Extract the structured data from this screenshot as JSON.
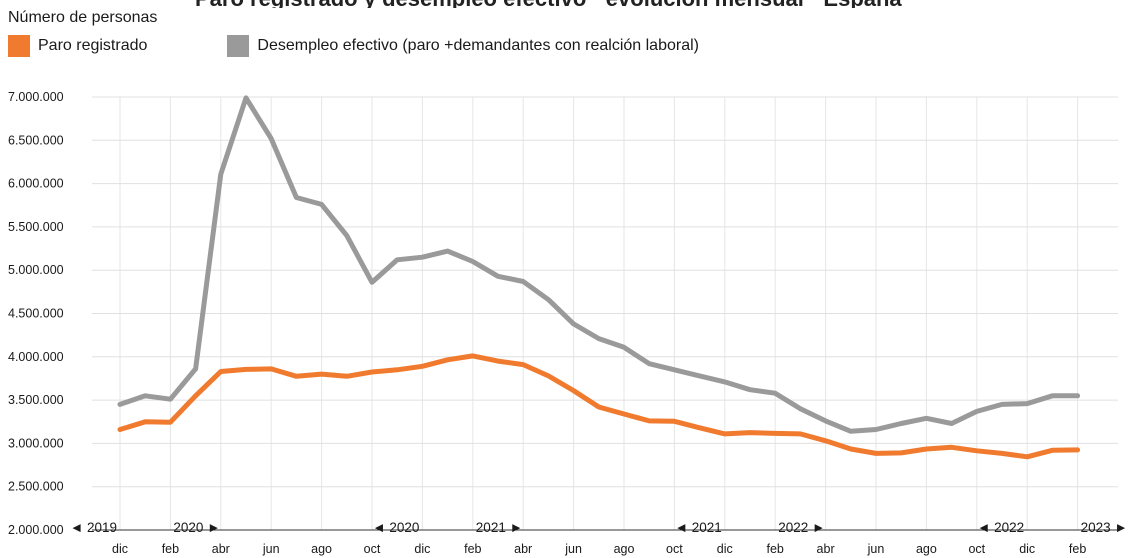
{
  "chart_data": {
    "type": "line",
    "title": "",
    "ylabel": "Número de personas",
    "ylim": [
      2000000,
      7000000
    ],
    "grid": true,
    "legend_position": "top-left",
    "y_ticks": [
      "2.000.000",
      "2.500.000",
      "3.000.000",
      "3.500.000",
      "4.000.000",
      "4.500.000",
      "5.000.000",
      "5.500.000",
      "6.000.000",
      "6.500.000",
      "7.000.000"
    ],
    "y_tick_values": [
      2000000,
      2500000,
      3000000,
      3500000,
      4000000,
      4500000,
      5000000,
      5500000,
      6000000,
      6500000,
      7000000
    ],
    "x_tick_labels": [
      "dic",
      "feb",
      "abr",
      "jun",
      "ago",
      "oct",
      "dic",
      "feb",
      "abr",
      "jun",
      "ago",
      "oct",
      "dic",
      "feb",
      "abr",
      "jun",
      "ago",
      "oct",
      "dic",
      "feb"
    ],
    "x": [
      "dic 2019",
      "ene 2020",
      "feb 2020",
      "mar 2020",
      "abr 2020",
      "may 2020",
      "jun 2020",
      "jul 2020",
      "ago 2020",
      "sep 2020",
      "oct 2020",
      "nov 2020",
      "dic 2020",
      "ene 2021",
      "feb 2021",
      "mar 2021",
      "abr 2021",
      "may 2021",
      "jun 2021",
      "jul 2021",
      "ago 2021",
      "sep 2021",
      "oct 2021",
      "nov 2021",
      "dic 2021",
      "ene 2022",
      "feb 2022",
      "mar 2022",
      "abr 2022",
      "may 2022",
      "jun 2022",
      "jul 2022",
      "ago 2022",
      "sep 2022",
      "oct 2022",
      "nov 2022",
      "dic 2022",
      "ene 2023",
      "feb 2023"
    ],
    "series": [
      {
        "name": "Paro registrado",
        "color": "#f07a2e",
        "values": [
          3160000,
          3250000,
          3245000,
          3550000,
          3830000,
          3855000,
          3860000,
          3775000,
          3800000,
          3775000,
          3825000,
          3850000,
          3890000,
          3965000,
          4010000,
          3950000,
          3910000,
          3780000,
          3610000,
          3420000,
          3340000,
          3260000,
          3255000,
          3180000,
          3110000,
          3125000,
          3115000,
          3110000,
          3030000,
          2935000,
          2885000,
          2890000,
          2935000,
          2955000,
          2915000,
          2885000,
          2845000,
          2920000,
          2925000
        ]
      },
      {
        "name": "Desempleo efectivo (paro +demandantes con realción laboral)",
        "color": "#9a9a9a",
        "values": [
          3450000,
          3550000,
          3510000,
          3860000,
          6110000,
          6990000,
          6520000,
          5840000,
          5760000,
          5400000,
          4860000,
          5120000,
          5150000,
          5220000,
          5100000,
          4930000,
          4870000,
          4660000,
          4380000,
          4210000,
          4110000,
          3920000,
          3850000,
          3780000,
          3710000,
          3620000,
          3580000,
          3400000,
          3260000,
          3140000,
          3160000,
          3230000,
          3290000,
          3230000,
          3370000,
          3450000,
          3460000,
          3550000,
          3550000
        ]
      }
    ],
    "year_markers": [
      {
        "text": "◄ 2019",
        "month_index": 0,
        "side": "left"
      },
      {
        "text": "2020 ►",
        "month_index": 2,
        "side": "right"
      },
      {
        "text": "◄ 2020",
        "month_index": 12,
        "side": "left"
      },
      {
        "text": "2021 ►",
        "month_index": 14,
        "side": "right"
      },
      {
        "text": "◄ 2021",
        "month_index": 24,
        "side": "left"
      },
      {
        "text": "2022 ►",
        "month_index": 26,
        "side": "right"
      },
      {
        "text": "◄ 2022",
        "month_index": 36,
        "side": "left"
      },
      {
        "text": "2023 ►",
        "month_index": 38,
        "side": "right"
      }
    ]
  }
}
